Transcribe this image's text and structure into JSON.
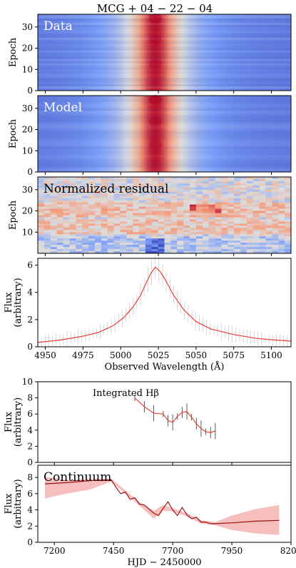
{
  "figure": {
    "title": "MCG + 04 − 22 − 04"
  },
  "chart_data": [
    {
      "type": "heatmap",
      "label": "Data",
      "ylabel": "Epoch",
      "ylim": [
        36,
        0
      ],
      "yticks": [
        0,
        10,
        20,
        30
      ],
      "x_range_angstrom": [
        4945,
        5113
      ],
      "colormap": "coolwarm",
      "peak_wavelength": 5023,
      "epochs": 36
    },
    {
      "type": "heatmap",
      "label": "Model",
      "ylabel": "Epoch",
      "ylim": [
        36,
        0
      ],
      "yticks": [
        0,
        10,
        20,
        30
      ],
      "x_range_angstrom": [
        4945,
        5113
      ],
      "colormap": "coolwarm",
      "peak_wavelength": 5023,
      "epochs": 36
    },
    {
      "type": "heatmap",
      "label": "Normalized residual",
      "ylabel": "Epoch",
      "ylim": [
        36,
        0
      ],
      "yticks": [
        10,
        20,
        30
      ],
      "x_range_angstrom": [
        4945,
        5113
      ],
      "colormap": "coolwarm",
      "epochs": 36
    },
    {
      "type": "line",
      "ylabel": "Flux\n(arbitrary)",
      "ylabel_lines": [
        "Flux",
        "(arbitrary)"
      ],
      "xlabel": "Observed Wavelength (Å)",
      "xlim": [
        4945,
        5113
      ],
      "ylim": [
        0,
        6.5
      ],
      "xticks": [
        4950,
        4975,
        5000,
        5025,
        5050,
        5075,
        5100
      ],
      "yticks": [
        0,
        2,
        4,
        6
      ],
      "series": [
        {
          "color": "#e8403a",
          "x": [
            4945,
            4960,
            4975,
            4985,
            4995,
            5002,
            5008,
            5013,
            5017,
            5020,
            5023,
            5026,
            5030,
            5035,
            5042,
            5050,
            5060,
            5075,
            5090,
            5100,
            5113
          ],
          "y": [
            0.32,
            0.5,
            0.78,
            1.05,
            1.55,
            2.15,
            2.9,
            3.75,
            4.7,
            5.4,
            5.85,
            5.55,
            4.85,
            3.8,
            2.7,
            1.85,
            1.3,
            0.9,
            0.62,
            0.52,
            0.42
          ]
        }
      ]
    },
    {
      "type": "line",
      "label": "Integrated Hβ",
      "ylabel": "Flux\n(arbitrary)",
      "ylabel_lines": [
        "Flux",
        "(arbitrary)"
      ],
      "xlim": [
        7130,
        8200
      ],
      "ylim": [
        0,
        10
      ],
      "yticks": [
        0,
        2,
        4,
        6,
        8,
        10
      ],
      "series": [
        {
          "color": "#e8403a",
          "x": [
            7540,
            7580,
            7620,
            7660,
            7680,
            7700,
            7720,
            7740,
            7760,
            7780,
            7800,
            7820,
            7840,
            7860,
            7880
          ],
          "y": [
            8.0,
            6.9,
            6.1,
            6.0,
            5.2,
            4.95,
            5.7,
            6.2,
            6.3,
            5.6,
            4.8,
            4.2,
            3.8,
            3.7,
            3.9
          ]
        }
      ]
    },
    {
      "type": "line",
      "label": "Continuum",
      "ylabel": "Flux\n(arbitrary)",
      "ylabel_lines": [
        "Flux",
        "(arbitrary)"
      ],
      "xlabel": "HJD − 2450000",
      "xlim": [
        7130,
        8200
      ],
      "ylim": [
        0,
        9.5
      ],
      "xticks": [
        7200,
        7450,
        7700,
        7950,
        8200
      ],
      "yticks": [
        0,
        2,
        4,
        6,
        8
      ],
      "series": [
        {
          "color": "#a01010",
          "x": [
            7160,
            7250,
            7350,
            7440,
            7460,
            7480,
            7500,
            7520,
            7540,
            7560,
            7580,
            7600,
            7620,
            7640,
            7660,
            7680,
            7700,
            7720,
            7740,
            7760,
            7780,
            7800,
            7820,
            7840,
            7860,
            7880,
            7950,
            8050,
            8150
          ],
          "y": [
            7.2,
            7.35,
            7.6,
            7.7,
            6.8,
            6.0,
            6.2,
            5.3,
            5.5,
            4.7,
            4.6,
            4.1,
            3.6,
            3.3,
            4.2,
            5.0,
            4.0,
            3.3,
            4.3,
            3.4,
            2.9,
            3.1,
            2.5,
            2.5,
            2.3,
            2.3,
            2.4,
            2.6,
            2.7
          ]
        }
      ],
      "uncertainty_band": {
        "x": [
          7160,
          7250,
          7350,
          7440,
          7500,
          7560,
          7620,
          7660,
          7700,
          7760,
          7820,
          7880,
          7950,
          8050,
          8150
        ],
        "upper": [
          8.1,
          7.7,
          7.8,
          7.85,
          6.4,
          4.9,
          3.9,
          4.6,
          4.2,
          3.6,
          2.7,
          2.5,
          3.3,
          4.1,
          4.6
        ],
        "lower": [
          5.4,
          6.0,
          6.5,
          7.5,
          6.0,
          4.5,
          2.9,
          3.9,
          3.8,
          3.2,
          2.3,
          2.1,
          1.5,
          1.1,
          0.9
        ]
      }
    }
  ]
}
